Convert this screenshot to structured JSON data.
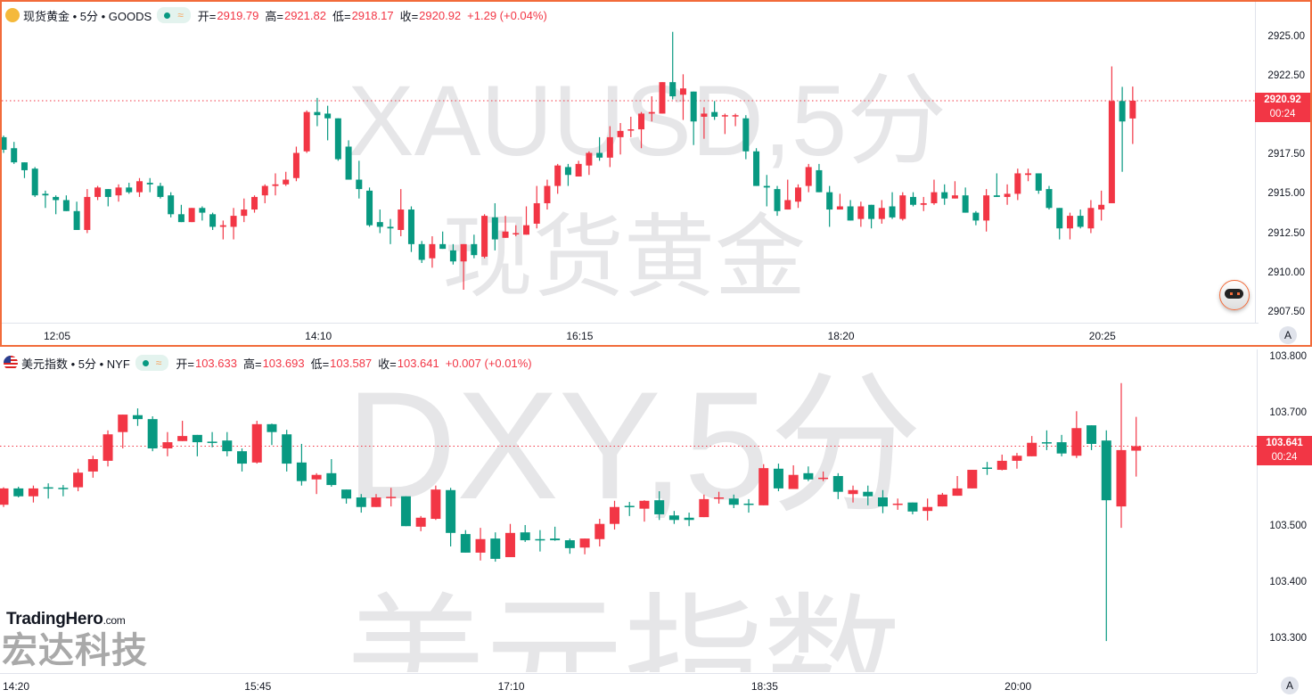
{
  "colors": {
    "up": "#f23645",
    "down": "#089981",
    "accent": "#f26b3a"
  },
  "top": {
    "icon": "gold-bars-icon",
    "symbol": "现货黄金 • 5分 • GOODS",
    "ohlc": {
      "o_label": "开=",
      "o": "2919.79",
      "h_label": "高=",
      "h": "2921.82",
      "l_label": "低=",
      "l": "2918.17",
      "c_label": "收=",
      "c": "2920.92",
      "change": "+1.29 (+0.04%)"
    },
    "watermark_1": "XAUUSD,5分",
    "watermark_2": "现货黄金",
    "price_label": "2920.92",
    "countdown": "00:24",
    "auto_button": "A",
    "price_ticks": [
      "2925.00",
      "2922.50",
      "2917.50",
      "2915.00",
      "2912.50",
      "2910.00",
      "2907.50"
    ],
    "time_ticks": [
      "12:05",
      "14:10",
      "16:15",
      "18:20",
      "20:25"
    ]
  },
  "bottom": {
    "icon": "us-flag-icon",
    "symbol": "美元指数 • 5分 • NYF",
    "ohlc": {
      "o_label": "开=",
      "o": "103.633",
      "h_label": "高=",
      "h": "103.693",
      "l_label": "低=",
      "l": "103.587",
      "c_label": "收=",
      "c": "103.641",
      "change": "+0.007 (+0.01%)"
    },
    "watermark_1": "DXY,5分",
    "watermark_2": "美元指数",
    "price_label": "103.641",
    "countdown": "00:24",
    "auto_button": "A",
    "price_ticks": [
      "103.800",
      "103.700",
      "103.500",
      "103.400",
      "103.300"
    ],
    "time_ticks": [
      "14:20",
      "15:45",
      "17:10",
      "18:35",
      "20:00"
    ]
  },
  "logo": {
    "brand": "TradingHero",
    "suffix": ".com",
    "company": "宏达科技"
  },
  "chart_data": [
    {
      "type": "candlestick",
      "title": "现货黄金 • 5分 • GOODS",
      "interval": "5m",
      "ylim": [
        2907.5,
        2925.5
      ],
      "last": 2920.92,
      "ohlc": [
        [
          2918.6,
          2918.7,
          2917.6,
          2917.8
        ],
        [
          2917.9,
          2918.3,
          2916.9,
          2917.0
        ],
        [
          2917.0,
          2917.0,
          2916.0,
          2916.5
        ],
        [
          2916.6,
          2916.7,
          2914.8,
          2914.9
        ],
        [
          2915.0,
          2915.2,
          2914.1,
          2914.9
        ],
        [
          2914.8,
          2914.9,
          2913.7,
          2914.6
        ],
        [
          2914.6,
          2914.9,
          2913.9,
          2913.9
        ],
        [
          2913.9,
          2914.5,
          2912.7,
          2912.7
        ],
        [
          2912.7,
          2915.3,
          2912.5,
          2914.8
        ],
        [
          2914.8,
          2915.5,
          2914.6,
          2915.4
        ],
        [
          2915.3,
          2915.3,
          2914.2,
          2914.8
        ],
        [
          2914.9,
          2915.6,
          2914.5,
          2915.4
        ],
        [
          2915.4,
          2915.7,
          2915.0,
          2915.1
        ],
        [
          2915.1,
          2916.0,
          2914.8,
          2915.8
        ],
        [
          2915.7,
          2916.0,
          2915.1,
          2915.6
        ],
        [
          2915.5,
          2915.7,
          2914.7,
          2914.8
        ],
        [
          2914.9,
          2915.1,
          2913.5,
          2913.7
        ],
        [
          2913.7,
          2914.3,
          2913.2,
          2913.2
        ],
        [
          2913.2,
          2914.1,
          2913.2,
          2914.1
        ],
        [
          2914.1,
          2914.2,
          2913.3,
          2913.8
        ],
        [
          2913.7,
          2913.8,
          2912.7,
          2912.9
        ],
        [
          2912.9,
          2913.3,
          2912.1,
          2913.0
        ],
        [
          2912.9,
          2914.1,
          2912.1,
          2913.6
        ],
        [
          2913.6,
          2914.7,
          2913.2,
          2914.0
        ],
        [
          2914.0,
          2914.9,
          2913.8,
          2914.8
        ],
        [
          2914.9,
          2915.6,
          2914.4,
          2915.5
        ],
        [
          2915.5,
          2916.3,
          2914.9,
          2915.6
        ],
        [
          2915.6,
          2916.4,
          2915.5,
          2915.9
        ],
        [
          2916.0,
          2918.0,
          2915.8,
          2917.6
        ],
        [
          2917.7,
          2920.3,
          2917.6,
          2920.2
        ],
        [
          2920.2,
          2921.1,
          2919.3,
          2920.0
        ],
        [
          2920.1,
          2920.6,
          2918.4,
          2919.8
        ],
        [
          2919.8,
          2919.8,
          2917.1,
          2917.2
        ],
        [
          2918.0,
          2918.4,
          2915.9,
          2915.9
        ],
        [
          2915.9,
          2917.1,
          2914.7,
          2915.3
        ],
        [
          2915.2,
          2915.4,
          2912.9,
          2913.0
        ],
        [
          2913.2,
          2914.0,
          2912.5,
          2912.9
        ],
        [
          2912.9,
          2913.4,
          2911.8,
          2912.8
        ],
        [
          2912.7,
          2915.3,
          2912.3,
          2914.0
        ],
        [
          2914.0,
          2914.2,
          2911.3,
          2911.8
        ],
        [
          2911.8,
          2912.0,
          2910.6,
          2910.8
        ],
        [
          2910.9,
          2912.3,
          2910.3,
          2911.8
        ],
        [
          2911.8,
          2912.6,
          2911.5,
          2911.5
        ],
        [
          2911.4,
          2911.8,
          2910.5,
          2910.7
        ],
        [
          2910.7,
          2911.8,
          2908.9,
          2911.8
        ],
        [
          2911.8,
          2912.4,
          2910.9,
          2911.1
        ],
        [
          2911.0,
          2913.7,
          2910.9,
          2913.6
        ],
        [
          2913.5,
          2914.4,
          2911.4,
          2912.1
        ],
        [
          2912.2,
          2913.6,
          2912.2,
          2912.6
        ],
        [
          2912.5,
          2913.0,
          2912.3,
          2912.5
        ],
        [
          2912.4,
          2914.2,
          2912.4,
          2913.0
        ],
        [
          2913.1,
          2915.5,
          2912.8,
          2914.4
        ],
        [
          2914.4,
          2915.9,
          2914.0,
          2915.5
        ],
        [
          2915.5,
          2916.9,
          2915.0,
          2916.8
        ],
        [
          2916.7,
          2916.9,
          2915.5,
          2916.2
        ],
        [
          2916.1,
          2917.1,
          2916.1,
          2916.9
        ],
        [
          2916.8,
          2917.7,
          2916.2,
          2917.6
        ],
        [
          2917.6,
          2918.6,
          2917.1,
          2917.3
        ],
        [
          2917.3,
          2919.3,
          2916.7,
          2918.6
        ],
        [
          2918.6,
          2919.5,
          2917.5,
          2919.0
        ],
        [
          2919.1,
          2919.9,
          2918.6,
          2919.1
        ],
        [
          2919.1,
          2920.2,
          2917.9,
          2920.1
        ],
        [
          2920.1,
          2921.2,
          2919.6,
          2920.2
        ],
        [
          2920.1,
          2922.1,
          2920.1,
          2922.1
        ],
        [
          2922.1,
          2925.3,
          2921.0,
          2921.2
        ],
        [
          2921.3,
          2922.6,
          2919.7,
          2921.7
        ],
        [
          2921.5,
          2921.5,
          2918.1,
          2919.6
        ],
        [
          2919.9,
          2920.5,
          2918.5,
          2920.1
        ],
        [
          2920.2,
          2920.9,
          2919.7,
          2919.9
        ],
        [
          2920.0,
          2920.1,
          2918.8,
          2920.0
        ],
        [
          2920.0,
          2920.1,
          2919.3,
          2920.0
        ],
        [
          2919.8,
          2920.0,
          2917.2,
          2917.7
        ],
        [
          2917.7,
          2917.9,
          2915.5,
          2915.5
        ],
        [
          2915.5,
          2916.2,
          2914.2,
          2915.4
        ],
        [
          2915.3,
          2915.5,
          2913.6,
          2913.9
        ],
        [
          2914.0,
          2915.9,
          2914.0,
          2914.6
        ],
        [
          2914.5,
          2915.6,
          2914.1,
          2915.4
        ],
        [
          2915.5,
          2916.9,
          2915.1,
          2916.7
        ],
        [
          2916.5,
          2916.9,
          2915.1,
          2915.1
        ],
        [
          2915.1,
          2915.5,
          2912.9,
          2914.0
        ],
        [
          2914.0,
          2915.0,
          2914.0,
          2914.2
        ],
        [
          2914.2,
          2914.6,
          2913.3,
          2913.3
        ],
        [
          2913.4,
          2914.5,
          2912.9,
          2914.2
        ],
        [
          2914.3,
          2914.3,
          2912.8,
          2913.4
        ],
        [
          2913.4,
          2914.6,
          2913.1,
          2914.1
        ],
        [
          2914.2,
          2915.1,
          2913.4,
          2913.5
        ],
        [
          2913.4,
          2915.1,
          2913.3,
          2914.9
        ],
        [
          2914.8,
          2915.1,
          2914.2,
          2914.3
        ],
        [
          2914.3,
          2914.8,
          2913.9,
          2914.4
        ],
        [
          2914.4,
          2915.9,
          2914.3,
          2915.1
        ],
        [
          2915.1,
          2915.6,
          2914.3,
          2914.7
        ],
        [
          2914.7,
          2915.8,
          2914.7,
          2914.9
        ],
        [
          2914.9,
          2915.4,
          2913.8,
          2913.8
        ],
        [
          2913.8,
          2913.9,
          2913.0,
          2913.3
        ],
        [
          2913.3,
          2915.3,
          2912.6,
          2914.9
        ],
        [
          2914.9,
          2916.3,
          2914.8,
          2914.8
        ],
        [
          2914.8,
          2915.6,
          2914.3,
          2915.0
        ],
        [
          2915.0,
          2916.6,
          2914.6,
          2916.3
        ],
        [
          2916.2,
          2916.6,
          2915.8,
          2916.3
        ],
        [
          2916.3,
          2916.3,
          2915.0,
          2915.2
        ],
        [
          2915.3,
          2915.5,
          2914.0,
          2914.1
        ],
        [
          2914.1,
          2914.1,
          2912.1,
          2912.8
        ],
        [
          2912.8,
          2913.8,
          2912.1,
          2913.6
        ],
        [
          2913.6,
          2914.0,
          2912.8,
          2912.9
        ],
        [
          2912.8,
          2914.6,
          2912.5,
          2914.1
        ],
        [
          2914.0,
          2915.2,
          2913.3,
          2914.3
        ],
        [
          2914.4,
          2923.1,
          2914.4,
          2920.9
        ],
        [
          2920.9,
          2921.8,
          2916.4,
          2919.6
        ],
        [
          2919.79,
          2921.82,
          2918.17,
          2920.92
        ]
      ]
    },
    {
      "type": "candlestick",
      "title": "美元指数 • 5分 • NYF",
      "interval": "5m",
      "ylim": [
        103.27,
        103.82
      ],
      "last": 103.641,
      "ohlc": [
        [
          103.537,
          103.568,
          103.533,
          103.566
        ],
        [
          103.566,
          103.569,
          103.55,
          103.552
        ],
        [
          103.552,
          103.571,
          103.541,
          103.566
        ],
        [
          103.568,
          103.575,
          103.548,
          103.567
        ],
        [
          103.567,
          103.572,
          103.552,
          103.566
        ],
        [
          103.568,
          103.601,
          103.561,
          103.594
        ],
        [
          103.596,
          103.624,
          103.585,
          103.618
        ],
        [
          103.615,
          103.669,
          103.605,
          103.662
        ],
        [
          103.666,
          103.697,
          103.637,
          103.697
        ],
        [
          103.696,
          103.708,
          103.677,
          103.689
        ],
        [
          103.689,
          103.694,
          103.632,
          103.637
        ],
        [
          103.637,
          103.666,
          103.623,
          103.648
        ],
        [
          103.65,
          103.686,
          103.65,
          103.659
        ],
        [
          103.661,
          103.661,
          103.623,
          103.648
        ],
        [
          103.649,
          103.666,
          103.639,
          103.647
        ],
        [
          103.651,
          103.666,
          103.623,
          103.632
        ],
        [
          103.632,
          103.637,
          103.596,
          103.61
        ],
        [
          103.612,
          103.686,
          103.61,
          103.68
        ],
        [
          103.68,
          103.681,
          103.643,
          103.666
        ],
        [
          103.662,
          103.67,
          103.596,
          103.61
        ],
        [
          103.612,
          103.645,
          103.571,
          103.579
        ],
        [
          103.582,
          103.593,
          103.556,
          103.59
        ],
        [
          103.593,
          103.618,
          103.569,
          103.572
        ],
        [
          103.564,
          103.564,
          103.539,
          103.548
        ],
        [
          103.55,
          103.556,
          103.523,
          103.533
        ],
        [
          103.533,
          103.556,
          103.533,
          103.55
        ],
        [
          103.55,
          103.567,
          103.534,
          103.551
        ],
        [
          103.552,
          103.552,
          103.499,
          103.499
        ],
        [
          103.498,
          103.517,
          103.49,
          103.514
        ],
        [
          103.512,
          103.571,
          103.51,
          103.564
        ],
        [
          103.563,
          103.567,
          103.463,
          103.487
        ],
        [
          103.485,
          103.492,
          103.452,
          103.452
        ],
        [
          103.452,
          103.496,
          103.438,
          103.476
        ],
        [
          103.477,
          103.488,
          103.436,
          103.441
        ],
        [
          103.444,
          103.503,
          103.444,
          103.487
        ],
        [
          103.488,
          103.501,
          103.471,
          103.474
        ],
        [
          103.476,
          103.492,
          103.454,
          103.475
        ],
        [
          103.477,
          103.498,
          103.473,
          103.474
        ],
        [
          103.474,
          103.477,
          103.45,
          103.46
        ],
        [
          103.461,
          103.477,
          103.449,
          103.477
        ],
        [
          103.476,
          103.512,
          103.463,
          103.503
        ],
        [
          103.503,
          103.544,
          103.493,
          103.533
        ],
        [
          103.535,
          103.542,
          103.517,
          103.534
        ],
        [
          103.53,
          103.545,
          103.507,
          103.544
        ],
        [
          103.545,
          103.561,
          103.51,
          103.52
        ],
        [
          103.518,
          103.526,
          103.503,
          103.51
        ],
        [
          103.514,
          103.523,
          103.499,
          103.51
        ],
        [
          103.515,
          103.555,
          103.515,
          103.547
        ],
        [
          103.549,
          103.56,
          103.539,
          103.55
        ],
        [
          103.548,
          103.555,
          103.531,
          103.537
        ],
        [
          103.539,
          103.547,
          103.523,
          103.538
        ],
        [
          103.536,
          103.609,
          103.536,
          103.602
        ],
        [
          103.601,
          103.61,
          103.561,
          103.566
        ],
        [
          103.565,
          103.607,
          103.565,
          103.59
        ],
        [
          103.593,
          103.605,
          103.579,
          103.582
        ],
        [
          103.584,
          103.596,
          103.579,
          103.585
        ],
        [
          103.588,
          103.593,
          103.547,
          103.56
        ],
        [
          103.556,
          103.571,
          103.541,
          103.563
        ],
        [
          103.56,
          103.571,
          103.536,
          103.552
        ],
        [
          103.55,
          103.563,
          103.522,
          103.534
        ],
        [
          103.538,
          103.548,
          103.528,
          103.539
        ],
        [
          103.541,
          103.541,
          103.52,
          103.525
        ],
        [
          103.526,
          103.548,
          103.509,
          103.533
        ],
        [
          103.534,
          103.558,
          103.534,
          103.555
        ],
        [
          103.553,
          103.588,
          103.553,
          103.566
        ],
        [
          103.566,
          103.599,
          103.566,
          103.599
        ],
        [
          103.603,
          103.613,
          103.59,
          103.601
        ],
        [
          103.599,
          103.626,
          103.598,
          103.615
        ],
        [
          103.615,
          103.629,
          103.601,
          103.624
        ],
        [
          103.623,
          103.659,
          103.623,
          103.647
        ],
        [
          103.648,
          103.669,
          103.634,
          103.646
        ],
        [
          103.648,
          103.661,
          103.623,
          103.628
        ],
        [
          103.624,
          103.703,
          103.62,
          103.673
        ],
        [
          103.678,
          103.678,
          103.634,
          103.645
        ],
        [
          103.651,
          103.669,
          103.295,
          103.545
        ],
        [
          103.534,
          103.753,
          103.496,
          103.634
        ],
        [
          103.633,
          103.693,
          103.587,
          103.641
        ]
      ]
    }
  ]
}
